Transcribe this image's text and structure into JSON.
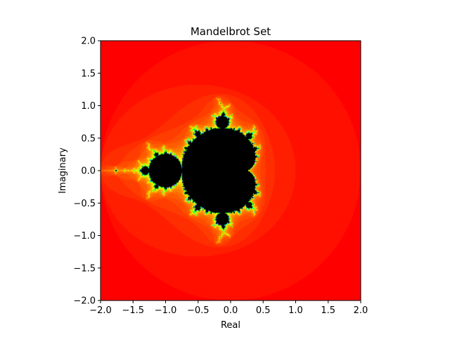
{
  "chart_data": {
    "type": "heatmap",
    "title": "Mandelbrot Set",
    "xlabel": "Real",
    "ylabel": "Imaginary",
    "xlim": [
      -2.0,
      2.0
    ],
    "ylim": [
      -2.0,
      2.0
    ],
    "x_ticks": [
      "−2.0",
      "−1.5",
      "−1.0",
      "−0.5",
      "0.0",
      "0.5",
      "1.0",
      "1.5",
      "2.0"
    ],
    "y_ticks": [
      "−2.0",
      "−1.5",
      "−1.0",
      "−0.5",
      "0.0",
      "0.5",
      "1.0",
      "1.5",
      "2.0"
    ],
    "colormap": "hsv",
    "max_iterations": 100,
    "interior_color": "#000000",
    "exterior_color": "#ff0000",
    "grid": false,
    "legend": "none"
  }
}
